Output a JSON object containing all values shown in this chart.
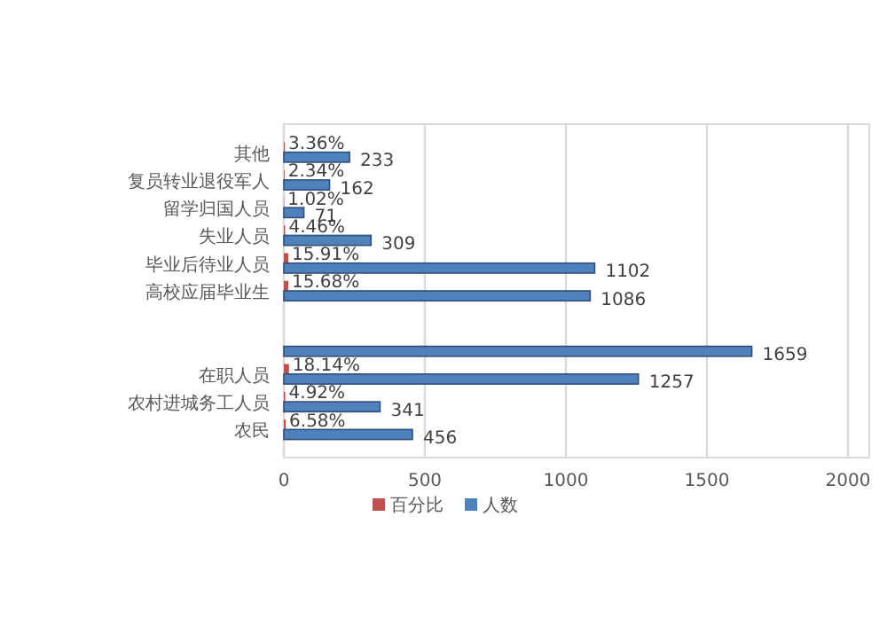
{
  "chart_data": {
    "type": "bar",
    "orientation": "horizontal",
    "categories": [
      "其他",
      "复员转业退役军人",
      "留学归国人员",
      "失业人员",
      "毕业后待业人员",
      "高校应届毕业生",
      null,
      null,
      "在职人员",
      "农村进城务工人员",
      "农民"
    ],
    "series": [
      {
        "name": "百分比",
        "color": "#c0504d",
        "values": [
          3.36,
          2.34,
          1.02,
          4.46,
          15.91,
          15.68,
          null,
          null,
          18.14,
          4.92,
          6.58
        ],
        "value_labels": [
          "3.36%",
          "2.34%",
          "1.02%",
          "4.46%",
          "15.91%",
          "15.68%",
          null,
          null,
          "18.14%",
          "4.92%",
          "6.58%"
        ]
      },
      {
        "name": "人数",
        "color": "#4f81bd",
        "values": [
          233,
          162,
          71,
          309,
          1102,
          1086,
          null,
          1659,
          1257,
          341,
          456
        ],
        "value_labels": [
          "233",
          "162",
          "71",
          "309",
          "1102",
          "1086",
          null,
          "1659",
          "1257",
          "341",
          "456"
        ]
      }
    ],
    "xlim": [
      0,
      2000
    ],
    "xticks": [
      0,
      500,
      1000,
      1500,
      2000
    ],
    "grid": "x",
    "legend": "bottom"
  }
}
